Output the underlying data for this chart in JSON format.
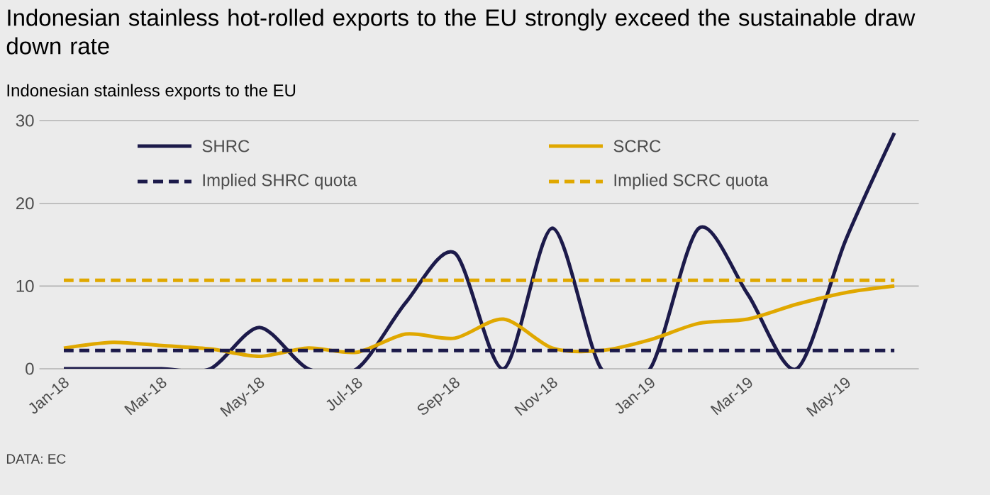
{
  "chart_data": {
    "type": "line",
    "title": "Indonesian stainless hot-rolled exports to the EU strongly exceed the sustainable draw down rate",
    "subtitle": "Indonesian stainless exports to the EU",
    "categories": [
      "Jan-18",
      null,
      "Mar-18",
      null,
      "May-18",
      null,
      "Jul-18",
      null,
      "Sep-18",
      null,
      "Nov-18",
      null,
      "Jan-19",
      null,
      "Mar-19",
      null,
      "May-19",
      null
    ],
    "series": [
      {
        "name": "SHRC",
        "color": "#1c1a4a",
        "line_style": "solid",
        "values": [
          0,
          0,
          0,
          0,
          5,
          0,
          0,
          8,
          14,
          0,
          17,
          0,
          0,
          17,
          9,
          0,
          15.5,
          28.5
        ]
      },
      {
        "name": "SCRC",
        "color": "#e0a800",
        "line_style": "solid",
        "values": [
          2.5,
          3.2,
          2.8,
          2.4,
          1.5,
          2.5,
          2,
          4.2,
          3.7,
          6,
          2.5,
          2.2,
          3.5,
          5.5,
          6,
          7.8,
          9.2,
          10
        ]
      },
      {
        "name": "Implied SHRC quota",
        "color": "#1c1a4a",
        "line_style": "dashed",
        "values": [
          2.2,
          2.2,
          2.2,
          2.2,
          2.2,
          2.2,
          2.2,
          2.2,
          2.2,
          2.2,
          2.2,
          2.2,
          2.2,
          2.2,
          2.2,
          2.2,
          2.2,
          2.2
        ]
      },
      {
        "name": "Implied SCRC quota",
        "color": "#e0a800",
        "line_style": "dashed",
        "values": [
          10.7,
          10.7,
          10.7,
          10.7,
          10.7,
          10.7,
          10.7,
          10.7,
          10.7,
          10.7,
          10.7,
          10.7,
          10.7,
          10.7,
          10.7,
          10.7,
          10.7,
          10.7
        ]
      }
    ],
    "ylim": [
      0,
      30
    ],
    "yticks": [
      0,
      10,
      20,
      30
    ],
    "grid": "y",
    "legend": "top",
    "marker": "none",
    "annotations": [
      "DATA: EC"
    ]
  }
}
